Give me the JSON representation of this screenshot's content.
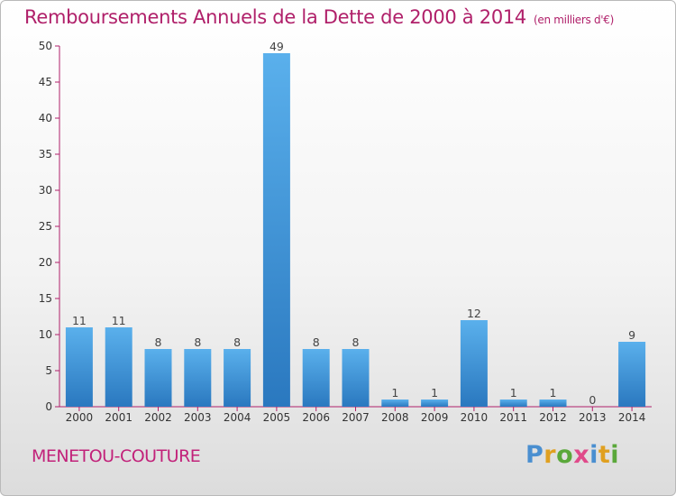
{
  "title": "Remboursements Annuels de la Dette de 2000 à 2014",
  "title_unit": "(en milliers d'€)",
  "commune": "MENETOU-COUTURE",
  "logo": {
    "letters": [
      {
        "char": "P",
        "color": "#4a8fd0"
      },
      {
        "char": "r",
        "color": "#e0a020"
      },
      {
        "char": "o",
        "color": "#5aa83a"
      },
      {
        "char": "x",
        "color": "#e04a8a"
      },
      {
        "char": "i",
        "color": "#4a8fd0"
      },
      {
        "char": "t",
        "color": "#e0a020"
      },
      {
        "char": "i",
        "color": "#5aa83a"
      }
    ]
  },
  "chart_data": {
    "type": "bar",
    "categories": [
      "2000",
      "2001",
      "2002",
      "2003",
      "2004",
      "2005",
      "2006",
      "2007",
      "2008",
      "2009",
      "2010",
      "2011",
      "2012",
      "2013",
      "2014"
    ],
    "values": [
      11,
      11,
      8,
      8,
      8,
      49,
      8,
      8,
      1,
      1,
      12,
      1,
      1,
      0,
      9
    ],
    "data_labels": [
      "11",
      "11",
      "8",
      "8",
      "8",
      "49",
      "8",
      "8",
      "1",
      "1",
      "12",
      "1",
      "1",
      "0",
      "9"
    ],
    "ylim": [
      0,
      50
    ],
    "yticks": [
      0,
      5,
      10,
      15,
      20,
      25,
      30,
      35,
      40,
      45,
      50
    ],
    "xlabel": "",
    "ylabel": "",
    "grid": false,
    "bar_color": "#3a8fd8",
    "axis_color": "#b0206a"
  }
}
